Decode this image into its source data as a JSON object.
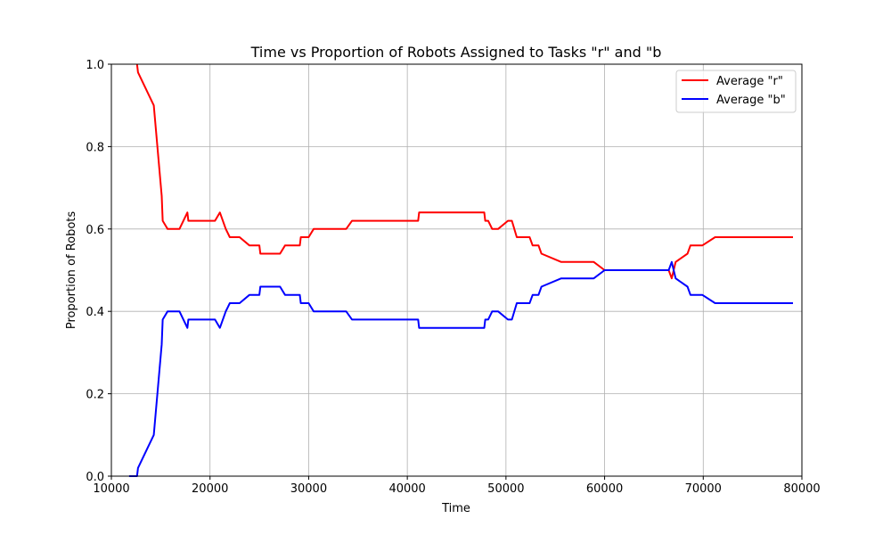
{
  "chart_data": {
    "type": "line",
    "title": "Time vs Proportion of Robots Assigned to Tasks \"r\" and \"b",
    "xlabel": "Time",
    "ylabel": "Proportion of Robots",
    "xlim": [
      10000,
      80000
    ],
    "ylim": [
      0.0,
      1.0
    ],
    "xticks": [
      10000,
      20000,
      30000,
      40000,
      50000,
      60000,
      70000,
      80000
    ],
    "yticks": [
      0.0,
      0.2,
      0.4,
      0.6,
      0.8,
      1.0
    ],
    "xtick_labels": [
      "10000",
      "20000",
      "30000",
      "40000",
      "50000",
      "60000",
      "70000",
      "80000"
    ],
    "ytick_labels": [
      "0.0",
      "0.2",
      "0.4",
      "0.6",
      "0.8",
      "1.0"
    ],
    "grid": true,
    "legend_position": "top-right",
    "series": [
      {
        "name": "Average \"r\"",
        "color": "#ff0000",
        "points": [
          [
            12600,
            1.0
          ],
          [
            12700,
            0.98
          ],
          [
            14300,
            0.9
          ],
          [
            15100,
            0.68
          ],
          [
            15200,
            0.62
          ],
          [
            15700,
            0.6
          ],
          [
            16900,
            0.6
          ],
          [
            17700,
            0.64
          ],
          [
            17800,
            0.62
          ],
          [
            20500,
            0.62
          ],
          [
            21000,
            0.64
          ],
          [
            21600,
            0.6
          ],
          [
            22000,
            0.58
          ],
          [
            23000,
            0.58
          ],
          [
            24000,
            0.56
          ],
          [
            25000,
            0.56
          ],
          [
            25100,
            0.54
          ],
          [
            27100,
            0.54
          ],
          [
            27600,
            0.56
          ],
          [
            29100,
            0.56
          ],
          [
            29200,
            0.58
          ],
          [
            30000,
            0.58
          ],
          [
            30500,
            0.6
          ],
          [
            33800,
            0.6
          ],
          [
            34400,
            0.62
          ],
          [
            41100,
            0.62
          ],
          [
            41200,
            0.64
          ],
          [
            47800,
            0.64
          ],
          [
            47900,
            0.62
          ],
          [
            48200,
            0.62
          ],
          [
            48600,
            0.6
          ],
          [
            49200,
            0.6
          ],
          [
            50200,
            0.62
          ],
          [
            50600,
            0.62
          ],
          [
            51100,
            0.58
          ],
          [
            52400,
            0.58
          ],
          [
            52700,
            0.56
          ],
          [
            53300,
            0.56
          ],
          [
            53600,
            0.54
          ],
          [
            55600,
            0.52
          ],
          [
            58900,
            0.52
          ],
          [
            60000,
            0.5
          ],
          [
            66500,
            0.5
          ],
          [
            66800,
            0.48
          ],
          [
            67200,
            0.52
          ],
          [
            68400,
            0.54
          ],
          [
            68700,
            0.56
          ],
          [
            69900,
            0.56
          ],
          [
            71200,
            0.58
          ],
          [
            79100,
            0.58
          ]
        ]
      },
      {
        "name": "Average \"b\"",
        "color": "#0000ff",
        "points": [
          [
            11800,
            0.0
          ],
          [
            12600,
            0.0
          ],
          [
            12700,
            0.02
          ],
          [
            14300,
            0.1
          ],
          [
            15100,
            0.32
          ],
          [
            15200,
            0.38
          ],
          [
            15700,
            0.4
          ],
          [
            16900,
            0.4
          ],
          [
            17700,
            0.36
          ],
          [
            17800,
            0.38
          ],
          [
            20500,
            0.38
          ],
          [
            21000,
            0.36
          ],
          [
            21600,
            0.4
          ],
          [
            22000,
            0.42
          ],
          [
            23000,
            0.42
          ],
          [
            24000,
            0.44
          ],
          [
            25000,
            0.44
          ],
          [
            25100,
            0.46
          ],
          [
            27100,
            0.46
          ],
          [
            27600,
            0.44
          ],
          [
            29100,
            0.44
          ],
          [
            29200,
            0.42
          ],
          [
            30000,
            0.42
          ],
          [
            30500,
            0.4
          ],
          [
            33800,
            0.4
          ],
          [
            34400,
            0.38
          ],
          [
            41100,
            0.38
          ],
          [
            41200,
            0.36
          ],
          [
            47800,
            0.36
          ],
          [
            47900,
            0.38
          ],
          [
            48200,
            0.38
          ],
          [
            48600,
            0.4
          ],
          [
            49200,
            0.4
          ],
          [
            50200,
            0.38
          ],
          [
            50600,
            0.38
          ],
          [
            51100,
            0.42
          ],
          [
            52400,
            0.42
          ],
          [
            52700,
            0.44
          ],
          [
            53300,
            0.44
          ],
          [
            53600,
            0.46
          ],
          [
            55600,
            0.48
          ],
          [
            58900,
            0.48
          ],
          [
            60000,
            0.5
          ],
          [
            66500,
            0.5
          ],
          [
            66800,
            0.52
          ],
          [
            67200,
            0.48
          ],
          [
            68400,
            0.46
          ],
          [
            68700,
            0.44
          ],
          [
            69900,
            0.44
          ],
          [
            71200,
            0.42
          ],
          [
            79100,
            0.42
          ]
        ]
      }
    ]
  }
}
